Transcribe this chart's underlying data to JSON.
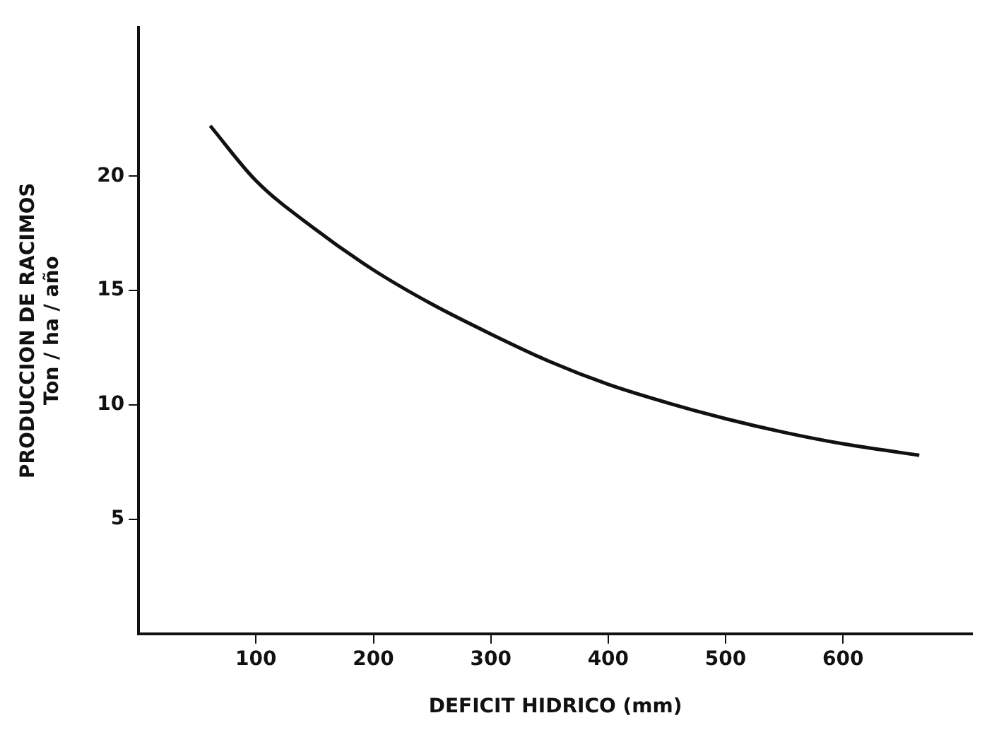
{
  "chart_data": {
    "type": "line",
    "xlabel": "DEFICIT HIDRICO (mm)",
    "ylabel": "PRODUCCION DE RACIMOS\nTon / ha / año",
    "x": [
      61,
      100,
      150,
      200,
      250,
      300,
      350,
      400,
      450,
      500,
      550,
      600,
      665
    ],
    "values": [
      22.2,
      19.8,
      17.7,
      15.9,
      14.4,
      13.1,
      11.9,
      10.9,
      10.1,
      9.4,
      8.8,
      8.3,
      7.8
    ],
    "color": "#111111",
    "xlim": [
      0,
      710
    ],
    "xticks": [
      100,
      200,
      300,
      400,
      500,
      600
    ],
    "ylim": [
      0,
      26.5
    ],
    "yticks": [
      5,
      10,
      15,
      20
    ],
    "grid": false,
    "legend": false,
    "marker": "none",
    "line_style": "solid"
  }
}
